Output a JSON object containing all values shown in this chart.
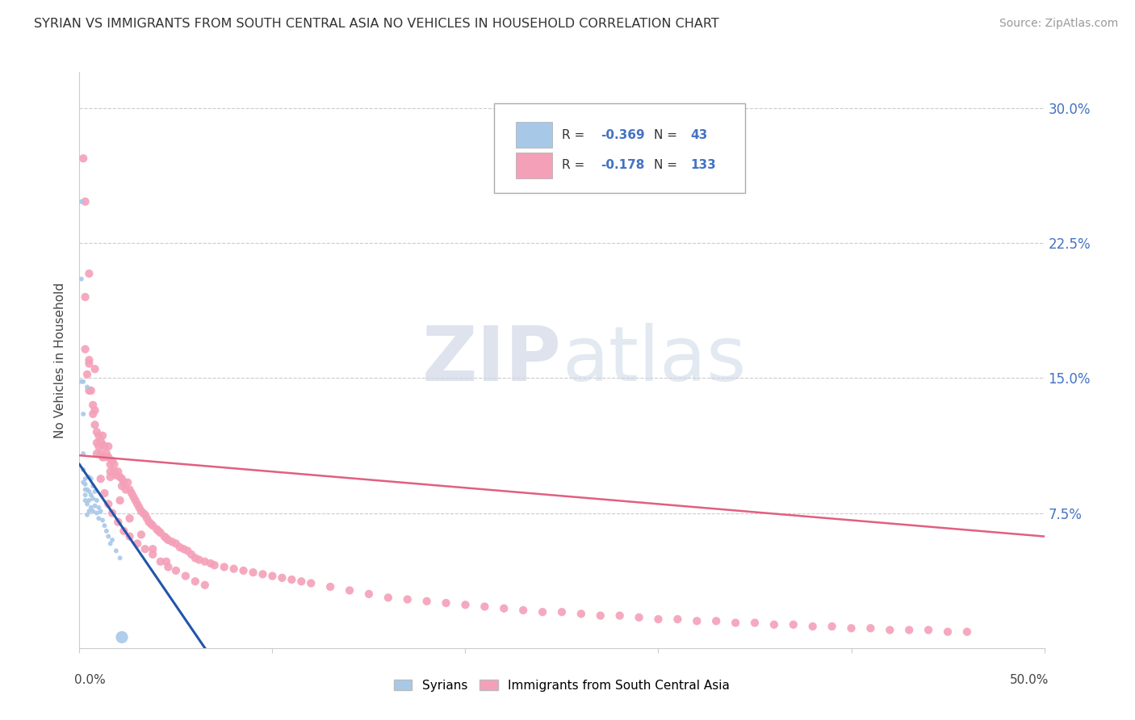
{
  "title": "SYRIAN VS IMMIGRANTS FROM SOUTH CENTRAL ASIA NO VEHICLES IN HOUSEHOLD CORRELATION CHART",
  "source": "Source: ZipAtlas.com",
  "ylabel": "No Vehicles in Household",
  "right_yticks": [
    "30.0%",
    "22.5%",
    "15.0%",
    "7.5%"
  ],
  "right_ytick_vals": [
    0.3,
    0.225,
    0.15,
    0.075
  ],
  "watermark_zip": "ZIP",
  "watermark_atlas": "atlas",
  "blue_color": "#a8c8e8",
  "pink_color": "#f4a0b8",
  "line_blue": "#2255aa",
  "line_pink": "#e06080",
  "xlim": [
    0.0,
    0.5
  ],
  "ylim": [
    0.0,
    0.32
  ],
  "blue_trendline_x": [
    0.0,
    0.065
  ],
  "blue_trendline_y": [
    0.102,
    0.0
  ],
  "pink_trendline_x": [
    0.0,
    0.5
  ],
  "pink_trendline_y": [
    0.107,
    0.062
  ],
  "blue_scatter_x": [
    0.001,
    0.001,
    0.001,
    0.002,
    0.002,
    0.002,
    0.002,
    0.002,
    0.003,
    0.003,
    0.003,
    0.003,
    0.003,
    0.004,
    0.004,
    0.004,
    0.004,
    0.005,
    0.005,
    0.005,
    0.005,
    0.006,
    0.006,
    0.006,
    0.007,
    0.007,
    0.007,
    0.008,
    0.008,
    0.009,
    0.009,
    0.01,
    0.01,
    0.011,
    0.012,
    0.013,
    0.014,
    0.015,
    0.016,
    0.017,
    0.019,
    0.021,
    0.022
  ],
  "blue_scatter_y": [
    0.248,
    0.205,
    0.148,
    0.13,
    0.148,
    0.108,
    0.099,
    0.092,
    0.094,
    0.088,
    0.082,
    0.091,
    0.085,
    0.145,
    0.088,
    0.08,
    0.074,
    0.095,
    0.087,
    0.082,
    0.076,
    0.094,
    0.085,
    0.078,
    0.09,
    0.083,
    0.076,
    0.087,
    0.079,
    0.082,
    0.075,
    0.078,
    0.072,
    0.076,
    0.071,
    0.068,
    0.065,
    0.062,
    0.058,
    0.06,
    0.054,
    0.05,
    0.006
  ],
  "blue_scatter_sizes": [
    18,
    18,
    18,
    18,
    18,
    18,
    18,
    18,
    18,
    18,
    18,
    18,
    18,
    18,
    18,
    18,
    18,
    18,
    18,
    18,
    18,
    18,
    18,
    18,
    18,
    18,
    18,
    18,
    18,
    18,
    18,
    18,
    18,
    18,
    18,
    18,
    18,
    18,
    18,
    18,
    18,
    18,
    120
  ],
  "pink_scatter_x": [
    0.002,
    0.003,
    0.003,
    0.004,
    0.005,
    0.005,
    0.006,
    0.007,
    0.008,
    0.008,
    0.009,
    0.009,
    0.01,
    0.01,
    0.011,
    0.011,
    0.012,
    0.012,
    0.013,
    0.013,
    0.014,
    0.015,
    0.015,
    0.016,
    0.016,
    0.017,
    0.018,
    0.018,
    0.019,
    0.02,
    0.021,
    0.022,
    0.022,
    0.023,
    0.024,
    0.025,
    0.026,
    0.027,
    0.028,
    0.029,
    0.03,
    0.031,
    0.032,
    0.033,
    0.034,
    0.035,
    0.036,
    0.037,
    0.038,
    0.04,
    0.041,
    0.042,
    0.044,
    0.045,
    0.046,
    0.048,
    0.05,
    0.052,
    0.054,
    0.056,
    0.058,
    0.06,
    0.062,
    0.065,
    0.068,
    0.07,
    0.075,
    0.08,
    0.085,
    0.09,
    0.095,
    0.1,
    0.105,
    0.11,
    0.115,
    0.12,
    0.13,
    0.14,
    0.15,
    0.16,
    0.17,
    0.18,
    0.19,
    0.2,
    0.21,
    0.22,
    0.23,
    0.24,
    0.25,
    0.26,
    0.27,
    0.28,
    0.29,
    0.3,
    0.31,
    0.32,
    0.33,
    0.34,
    0.35,
    0.36,
    0.37,
    0.38,
    0.39,
    0.4,
    0.41,
    0.42,
    0.43,
    0.44,
    0.45,
    0.46,
    0.003,
    0.005,
    0.007,
    0.009,
    0.011,
    0.013,
    0.015,
    0.017,
    0.02,
    0.023,
    0.026,
    0.03,
    0.034,
    0.038,
    0.042,
    0.046,
    0.05,
    0.055,
    0.06,
    0.065,
    0.005,
    0.008,
    0.012,
    0.016,
    0.021,
    0.026,
    0.032,
    0.038,
    0.045
  ],
  "pink_scatter_y": [
    0.272,
    0.248,
    0.166,
    0.152,
    0.143,
    0.158,
    0.143,
    0.135,
    0.132,
    0.124,
    0.12,
    0.114,
    0.118,
    0.112,
    0.115,
    0.108,
    0.113,
    0.106,
    0.112,
    0.106,
    0.108,
    0.112,
    0.106,
    0.102,
    0.098,
    0.104,
    0.102,
    0.098,
    0.096,
    0.098,
    0.095,
    0.094,
    0.09,
    0.092,
    0.088,
    0.092,
    0.088,
    0.086,
    0.084,
    0.082,
    0.08,
    0.078,
    0.076,
    0.075,
    0.074,
    0.072,
    0.07,
    0.069,
    0.068,
    0.066,
    0.065,
    0.064,
    0.062,
    0.061,
    0.06,
    0.059,
    0.058,
    0.056,
    0.055,
    0.054,
    0.052,
    0.05,
    0.049,
    0.048,
    0.047,
    0.046,
    0.045,
    0.044,
    0.043,
    0.042,
    0.041,
    0.04,
    0.039,
    0.038,
    0.037,
    0.036,
    0.034,
    0.032,
    0.03,
    0.028,
    0.027,
    0.026,
    0.025,
    0.024,
    0.023,
    0.022,
    0.021,
    0.02,
    0.02,
    0.019,
    0.018,
    0.018,
    0.017,
    0.016,
    0.016,
    0.015,
    0.015,
    0.014,
    0.014,
    0.013,
    0.013,
    0.012,
    0.012,
    0.011,
    0.011,
    0.01,
    0.01,
    0.01,
    0.009,
    0.009,
    0.195,
    0.16,
    0.13,
    0.108,
    0.094,
    0.086,
    0.08,
    0.075,
    0.07,
    0.065,
    0.062,
    0.058,
    0.055,
    0.052,
    0.048,
    0.045,
    0.043,
    0.04,
    0.037,
    0.035,
    0.208,
    0.155,
    0.118,
    0.095,
    0.082,
    0.072,
    0.063,
    0.055,
    0.048
  ]
}
